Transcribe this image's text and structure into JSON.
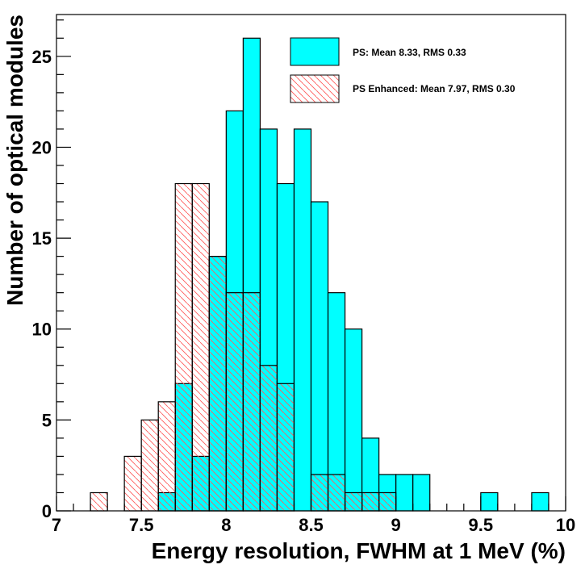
{
  "chart_data": {
    "type": "bar",
    "subtype": "histogram",
    "xlabel": "Energy resolution, FWHM at 1 MeV (%)",
    "ylabel": "Number of optical modules",
    "xlim": [
      7,
      10
    ],
    "ylim": [
      0,
      27.3
    ],
    "bin_width": 0.1,
    "x_ticks": [
      "7",
      "7.5",
      "8",
      "8.5",
      "9",
      "9.5",
      "10"
    ],
    "x_tick_values": [
      7,
      7.5,
      8,
      8.5,
      9,
      9.5,
      10
    ],
    "y_ticks": [
      "0",
      "5",
      "10",
      "15",
      "20",
      "25"
    ],
    "y_tick_values": [
      0,
      5,
      10,
      15,
      20,
      25
    ],
    "grid": false,
    "legend_position": "top-right",
    "series": [
      {
        "name": "PS: Mean 8.33, RMS 0.33",
        "color": "#00ffff",
        "style": "solid",
        "bins": [
          {
            "x0": 7.6,
            "count": 1
          },
          {
            "x0": 7.7,
            "count": 7
          },
          {
            "x0": 7.8,
            "count": 3
          },
          {
            "x0": 7.9,
            "count": 14
          },
          {
            "x0": 8.0,
            "count": 22
          },
          {
            "x0": 8.1,
            "count": 26
          },
          {
            "x0": 8.2,
            "count": 21
          },
          {
            "x0": 8.3,
            "count": 18
          },
          {
            "x0": 8.4,
            "count": 21
          },
          {
            "x0": 8.5,
            "count": 17
          },
          {
            "x0": 8.6,
            "count": 12
          },
          {
            "x0": 8.7,
            "count": 10
          },
          {
            "x0": 8.8,
            "count": 4
          },
          {
            "x0": 8.9,
            "count": 2
          },
          {
            "x0": 9.0,
            "count": 2
          },
          {
            "x0": 9.1,
            "count": 2
          },
          {
            "x0": 9.5,
            "count": 1
          },
          {
            "x0": 9.8,
            "count": 1
          }
        ]
      },
      {
        "name": "PS Enhanced: Mean 7.97, RMS 0.30",
        "color": "#ff5a5a",
        "style": "hatched",
        "bins": [
          {
            "x0": 7.2,
            "count": 1
          },
          {
            "x0": 7.4,
            "count": 3
          },
          {
            "x0": 7.5,
            "count": 5
          },
          {
            "x0": 7.6,
            "count": 6
          },
          {
            "x0": 7.7,
            "count": 18
          },
          {
            "x0": 7.8,
            "count": 18
          },
          {
            "x0": 7.9,
            "count": 14
          },
          {
            "x0": 8.0,
            "count": 12
          },
          {
            "x0": 8.1,
            "count": 12
          },
          {
            "x0": 8.2,
            "count": 8
          },
          {
            "x0": 8.3,
            "count": 7
          },
          {
            "x0": 8.5,
            "count": 2
          },
          {
            "x0": 8.6,
            "count": 2
          },
          {
            "x0": 8.7,
            "count": 1
          },
          {
            "x0": 8.8,
            "count": 1
          },
          {
            "x0": 8.9,
            "count": 1
          }
        ]
      }
    ]
  }
}
